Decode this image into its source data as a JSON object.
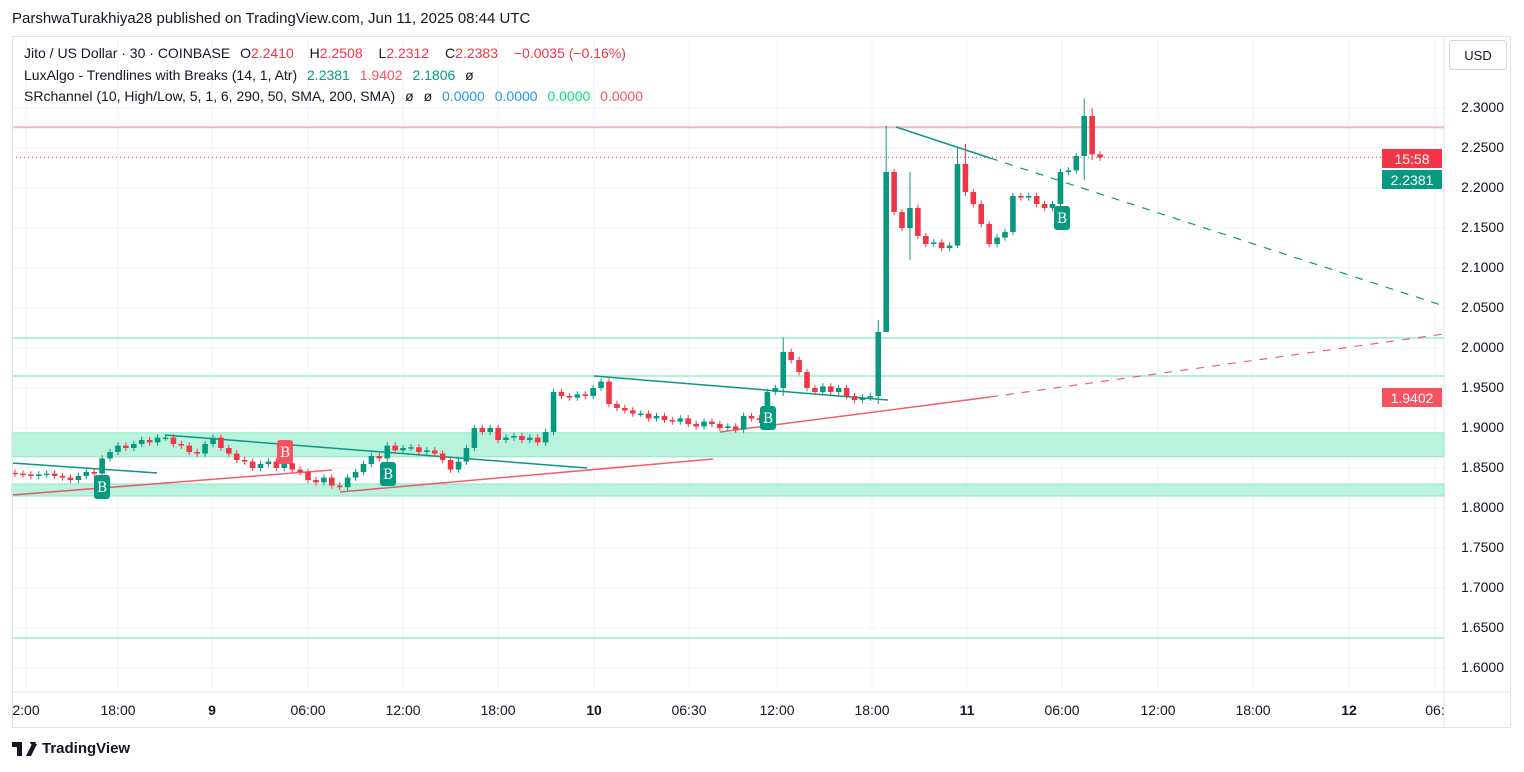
{
  "publish_line": "ParshwaTurakhiya28 published on TradingView.com, Jun 11, 2025 08:44 UTC",
  "legend": {
    "symbol": "Jito / US Dollar · 30 · COINBASE",
    "o_label": "O",
    "o": "2.2410",
    "h_label": "H",
    "h": "2.2508",
    "l_label": "L",
    "l": "2.2312",
    "c_label": "C",
    "c": "2.2383",
    "change": "−0.0035 (−0.16%)",
    "ind1_name": "LuxAlgo - Trendlines with Breaks (14, 1, Atr)",
    "ind1_v1": "2.2381",
    "ind1_v2": "1.9402",
    "ind1_v3": "2.1806",
    "ind1_v4": "ø",
    "ind2_name": "SRchannel (10, High/Low, 5, 1, 6, 290, 50, SMA, 200, SMA)",
    "ind2_v1": "ø",
    "ind2_v2": "ø",
    "ind2_v3": "0.0000",
    "ind2_v4": "0.0000",
    "ind2_v5": "0.0000",
    "ind2_v6": "0.0000"
  },
  "currency_button": "USD",
  "badges": {
    "countdown": "15:58",
    "upper_trend": "2.2381",
    "lower_trend": "1.9402"
  },
  "break_label": "B",
  "logo_text": "TradingView",
  "colors": {
    "up": "#089981",
    "down": "#f23645",
    "zone": "#b2f2d9",
    "resistance": "#f7b6bb"
  },
  "chart_data": {
    "type": "candlestick",
    "title": "Jito / US Dollar · 30 · COINBASE",
    "ylim": [
      1.57,
      2.33
    ],
    "y_ticks": [
      "2.3000",
      "2.2500",
      "2.2000",
      "2.1500",
      "2.1000",
      "2.0500",
      "2.0000",
      "1.9500",
      "1.9000",
      "1.8500",
      "1.8000",
      "1.7500",
      "1.7000",
      "1.6500",
      "1.6000"
    ],
    "x_ticks": [
      "2:00",
      "18:00",
      "9",
      "06:00",
      "12:00",
      "18:00",
      "10",
      "06:30",
      "12:00",
      "18:00",
      "11",
      "06:00",
      "12:00",
      "18:00",
      "12",
      "06:"
    ],
    "closes": [
      1.843,
      1.842,
      1.84,
      1.842,
      1.843,
      1.84,
      1.838,
      1.835,
      1.84,
      1.845,
      1.843,
      1.862,
      1.87,
      1.878,
      1.875,
      1.88,
      1.885,
      1.882,
      1.888,
      1.888,
      1.88,
      1.878,
      1.87,
      1.868,
      1.88,
      1.888,
      1.875,
      1.868,
      1.86,
      1.858,
      1.85,
      1.855,
      1.858,
      1.85,
      1.856,
      1.848,
      1.845,
      1.835,
      1.832,
      1.838,
      1.828,
      1.826,
      1.838,
      1.845,
      1.855,
      1.865,
      1.862,
      1.878,
      1.872,
      1.875,
      1.876,
      1.87,
      1.872,
      1.868,
      1.86,
      1.848,
      1.858,
      1.875,
      1.9,
      1.895,
      1.9,
      1.885,
      1.888,
      1.89,
      1.885,
      1.888,
      1.882,
      1.895,
      1.945,
      1.94,
      1.938,
      1.942,
      1.94,
      1.95,
      1.958,
      1.93,
      1.925,
      1.922,
      1.918,
      1.918,
      1.912,
      1.915,
      1.91,
      1.908,
      1.912,
      1.905,
      1.902,
      1.908,
      1.905,
      1.9,
      1.902,
      1.898,
      1.915,
      1.912,
      1.91,
      1.945,
      1.95,
      1.995,
      1.985,
      1.97,
      1.95,
      1.945,
      1.952,
      1.945,
      1.95,
      1.94,
      1.935,
      1.938,
      1.94,
      2.02,
      2.22,
      2.17,
      2.15,
      2.175,
      2.14,
      2.13,
      2.132,
      2.125,
      2.128,
      2.23,
      2.195,
      2.18,
      2.155,
      2.13,
      2.138,
      2.145,
      2.19,
      2.188,
      2.19,
      2.18,
      2.175,
      2.18,
      2.22,
      2.222,
      2.24,
      2.29,
      2.242,
      2.238
    ],
    "wick_overrides": {
      "97": [
        1.94,
        2.013
      ],
      "109": [
        1.93,
        2.035
      ],
      "110": [
        2.06,
        2.278
      ],
      "119": [
        2.125,
        2.25
      ],
      "120": [
        2.19,
        2.255
      ],
      "135": [
        2.21,
        2.312
      ],
      "136": [
        2.235,
        2.3
      ],
      "113": [
        2.11,
        2.22
      ]
    },
    "levels": {
      "resistance": 2.276,
      "current": 2.2383,
      "support_lines": [
        2.0125,
        1.965,
        1.6375
      ],
      "zones": [
        [
          1.864,
          1.894
        ],
        [
          1.815,
          1.83
        ]
      ]
    }
  }
}
